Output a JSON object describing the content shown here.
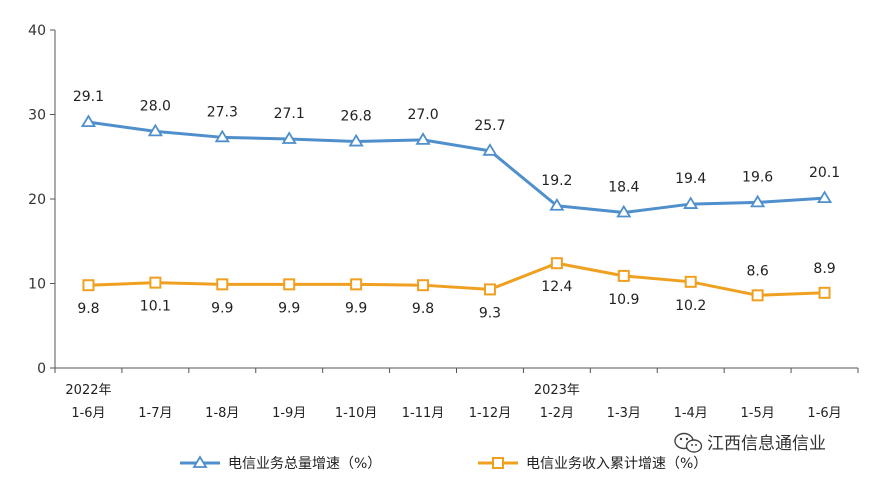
{
  "chart_data": {
    "type": "line",
    "title": "",
    "xlabel": "",
    "ylabel": "",
    "ylim": [
      0,
      40
    ],
    "yticks": [
      0,
      10,
      20,
      30,
      40
    ],
    "grid": false,
    "legend_position": "bottom",
    "categories": [
      [
        "2022年",
        "1-6月"
      ],
      [
        "",
        "1-7月"
      ],
      [
        "",
        "1-8月"
      ],
      [
        "",
        "1-9月"
      ],
      [
        "",
        "1-10月"
      ],
      [
        "",
        "1-11月"
      ],
      [
        "",
        "1-12月"
      ],
      [
        "2023年",
        "1-2月"
      ],
      [
        "",
        "1-3月"
      ],
      [
        "",
        "1-4月"
      ],
      [
        "",
        "1-5月"
      ],
      [
        "",
        "1-6月"
      ]
    ],
    "series": [
      {
        "name": "电信业务总量增速（%）",
        "color": "#4f8fcb",
        "marker": "triangle",
        "values": [
          29.1,
          28.0,
          27.3,
          27.1,
          26.8,
          27.0,
          25.7,
          19.2,
          18.4,
          19.4,
          19.6,
          20.1
        ],
        "labels": [
          "29.1",
          "28.0",
          "27.3",
          "27.1",
          "26.8",
          "27.0",
          "25.7",
          "19.2",
          "18.4",
          "19.4",
          "19.6",
          "20.1"
        ]
      },
      {
        "name": "电信业务收入累计增速（%）",
        "color": "#f0a020",
        "marker": "square",
        "values": [
          9.8,
          10.1,
          9.9,
          9.9,
          9.9,
          9.8,
          9.3,
          12.4,
          10.9,
          10.2,
          8.6,
          8.9
        ],
        "labels": [
          "9.8",
          "10.1",
          "9.9",
          "9.9",
          "9.9",
          "9.8",
          "9.3",
          "12.4",
          "10.9",
          "10.2",
          "8.6",
          "8.9"
        ]
      }
    ]
  },
  "watermark": {
    "text": "江西信息通信业",
    "icon": "wechat-icon"
  }
}
